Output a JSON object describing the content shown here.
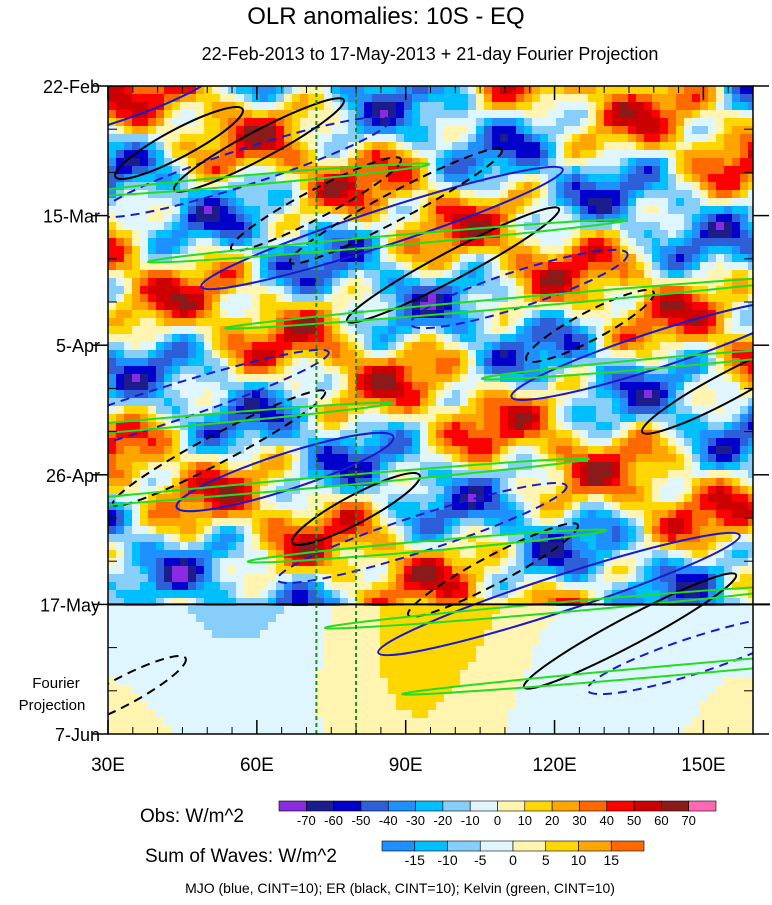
{
  "chart_data": {
    "type": "heatmap",
    "title": "OLR anomalies: 10S - EQ",
    "subtitle": "22-Feb-2013 to 17-May-2013 + 21-day Fourier Projection",
    "x_ticks": [
      "30E",
      "60E",
      "90E",
      "120E",
      "150E"
    ],
    "x_tick_values": [
      30,
      60,
      90,
      120,
      150
    ],
    "xlim": [
      30,
      160
    ],
    "y_ticks": [
      "22-Feb",
      "15-Mar",
      "5-Apr",
      "26-Apr",
      "17-May",
      "7-Jun"
    ],
    "y_tick_values": [
      "2013-02-22",
      "2013-03-15",
      "2013-04-05",
      "2013-04-26",
      "2013-05-17",
      "2013-06-07"
    ],
    "ylim": [
      "2013-02-22",
      "2013-06-07"
    ],
    "y_direction": "time increases downward",
    "obs_end": "2013-05-17",
    "projection_label": "Fourier Projection",
    "reference_lines_lon": [
      72,
      80
    ],
    "obs_colorbar": {
      "label": "Obs: W/m^2",
      "ticks": [
        "-70",
        "-60",
        "-50",
        "-40",
        "-30",
        "-20",
        "-10",
        "0",
        "10",
        "20",
        "30",
        "40",
        "50",
        "60",
        "70"
      ],
      "colors": [
        "#8a2be2",
        "#1c1c8c",
        "#0000cd",
        "#2f5fd8",
        "#1e90ff",
        "#00bfff",
        "#87cefa",
        "#e0f6ff",
        "#fff5b0",
        "#ffd700",
        "#ffa500",
        "#ff6a00",
        "#ff0000",
        "#cc0000",
        "#8b1a1a",
        "#ff69b4"
      ]
    },
    "waves_colorbar": {
      "label": "Sum of Waves: W/m^2",
      "ticks": [
        "-15",
        "-10",
        "-5",
        "0",
        "5",
        "10",
        "15"
      ],
      "colors": [
        "#1e90ff",
        "#00bfff",
        "#87cefa",
        "#e0f6ff",
        "#fff5b0",
        "#ffd700",
        "#ffa500",
        "#ff6a00"
      ]
    },
    "contours_legend": "MJO (blue, CINT=10); ER (black, CINT=10); Kelvin (green, CINT=10)",
    "series": [
      {
        "name": "MJO",
        "color": "#1a1acc"
      },
      {
        "name": "ER",
        "color": "#000000"
      },
      {
        "name": "Kelvin",
        "color": "#22dd22"
      }
    ]
  },
  "labels": {
    "fourier_line1": "Fourier",
    "fourier_line2": "Projection"
  }
}
